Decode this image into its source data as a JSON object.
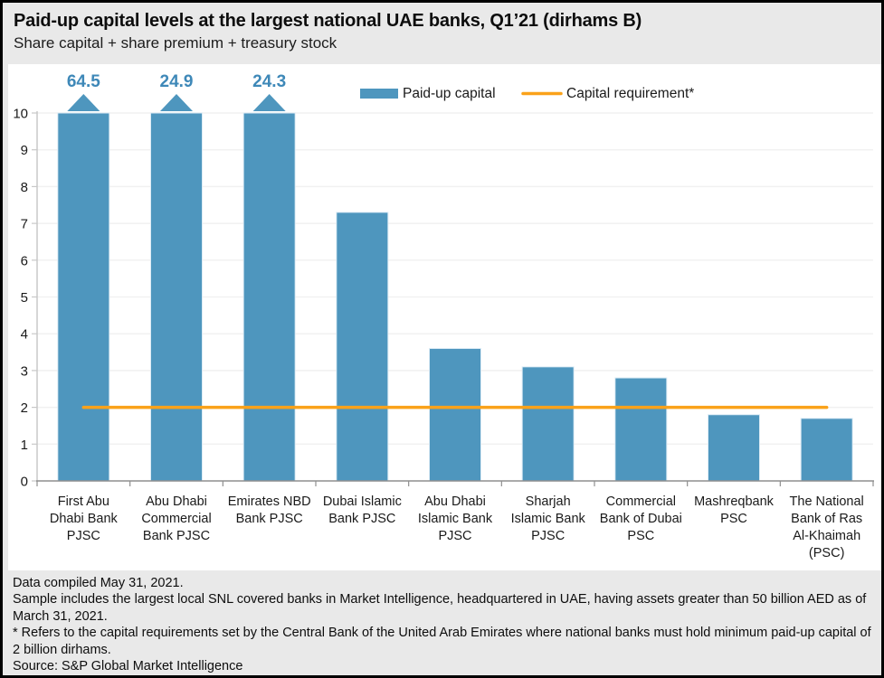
{
  "header": {
    "title": "Paid-up capital levels at the largest national UAE banks, Q1’21 (dirhams B)",
    "subtitle": "Share capital + share premium + treasury stock"
  },
  "chart_data": {
    "type": "bar",
    "title": "Paid-up capital levels at the largest national UAE banks, Q1’21 (dirhams B)",
    "subtitle": "Share capital + share premium + treasury stock",
    "categories": [
      "First Abu Dhabi Bank PJSC",
      "Abu Dhabi Commercial Bank PJSC",
      "Emirates NBD Bank PJSC",
      "Dubai Islamic Bank PJSC",
      "Abu Dhabi Islamic Bank PJSC",
      "Sharjah Islamic Bank PJSC",
      "Commercial Bank of Dubai PSC",
      "Mashreqbank PSC",
      "The National Bank of Ras Al-Khaimah (PSC)"
    ],
    "category_lines": [
      [
        "First Abu",
        "Dhabi Bank",
        "PJSC"
      ],
      [
        "Abu Dhabi",
        "Commercial",
        "Bank PJSC"
      ],
      [
        "Emirates NBD",
        "Bank PJSC"
      ],
      [
        "Dubai Islamic",
        "Bank PJSC"
      ],
      [
        "Abu Dhabi",
        "Islamic Bank",
        "PJSC"
      ],
      [
        "Sharjah",
        "Islamic Bank",
        "PJSC"
      ],
      [
        "Commercial",
        "Bank of Dubai",
        "PSC"
      ],
      [
        "Mashreqbank",
        "PSC"
      ],
      [
        "The National",
        "Bank of Ras",
        "Al-Khaimah",
        "(PSC)"
      ]
    ],
    "series": [
      {
        "name": "Paid-up capital",
        "type": "bar",
        "values": [
          64.5,
          24.9,
          24.3,
          7.3,
          3.6,
          3.1,
          2.8,
          1.8,
          1.7
        ]
      },
      {
        "name": "Capital requirement*",
        "type": "line",
        "value": 2
      }
    ],
    "clipped_value_labels": [
      "64.5",
      "24.9",
      "24.3"
    ],
    "ylim": [
      0,
      10
    ],
    "ytick_step": 1,
    "yticks": [
      0,
      1,
      2,
      3,
      4,
      5,
      6,
      7,
      8,
      9,
      10
    ],
    "grid": "horizontal",
    "legend_position": "top",
    "legend": [
      "Paid-up capital",
      "Capital requirement*"
    ],
    "colors": {
      "bar": "#4e96be",
      "bar_edge": "#dcebf5",
      "value_label": "#3e88b8",
      "requirement_line": "#faa21a",
      "gridline": "#f1f1f1",
      "y_axis": "#c8c8c8",
      "x_axis": "#8f8f8f",
      "tick_text": "#1a1a1a"
    }
  },
  "footer": {
    "notes": [
      "Data compiled May 31, 2021.",
      "Sample includes the largest local SNL covered banks in Market Intelligence, headquartered in UAE, having assets greater than 50 billion AED as of March 31, 2021.",
      "* Refers to the capital requirements set by the Central Bank of the United Arab Emirates where national banks must hold minimum paid-up capital of 2 billion dirhams.",
      "Source: S&P Global Market Intelligence"
    ]
  }
}
